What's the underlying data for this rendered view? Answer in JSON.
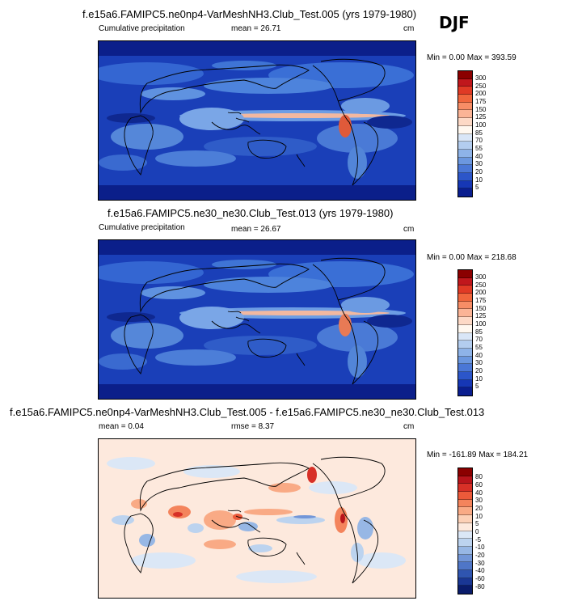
{
  "season": "DJF",
  "panels": [
    {
      "title": "f.e15a6.FAMIPC5.ne0np4-VarMeshNH3.Club_Test.005 (yrs 1979-1980)",
      "left_label": "Cumulative precipitation",
      "center_label": "mean =  26.71",
      "units": "cm",
      "minmax": "Min =   0.00 Max = 393.59"
    },
    {
      "title": "f.e15a6.FAMIPC5.ne30_ne30.Club_Test.013 (yrs 1979-1980)",
      "left_label": "Cumulative precipitation",
      "center_label": "mean =  26.67",
      "units": "cm",
      "minmax": "Min =   0.00 Max = 218.68"
    },
    {
      "title": "f.e15a6.FAMIPC5.ne0np4-VarMeshNH3.Club_Test.005 - f.e15a6.FAMIPC5.ne30_ne30.Club_Test.013",
      "left_label": "mean =   0.04",
      "center_label": "rmse =   8.37",
      "units": "cm",
      "minmax": "Min = -161.89 Max = 184.21"
    }
  ],
  "chart_data": [
    {
      "type": "heatmap",
      "title": "f.e15a6.FAMIPC5.ne0np4-VarMeshNH3.Club_Test.005 (yrs 1979-1980)",
      "variable": "Cumulative precipitation",
      "units": "cm",
      "mean": 26.71,
      "min": 0.0,
      "max": 393.59,
      "contour_levels": [
        5,
        10,
        20,
        30,
        40,
        55,
        70,
        85,
        100,
        125,
        150,
        175,
        200,
        250,
        300
      ],
      "level_labels": [
        "300",
        "250",
        "200",
        "175",
        "150",
        "125",
        "100",
        "85",
        "70",
        "55",
        "40",
        "30",
        "20",
        "10",
        "5"
      ],
      "colors": [
        "#8b0000",
        "#c0171c",
        "#e03a25",
        "#f0663d",
        "#f78d66",
        "#fbb496",
        "#fdd9c6",
        "#fff8f0",
        "#d9e6f7",
        "#b3cdef",
        "#8eb3e8",
        "#6b97df",
        "#4a77d6",
        "#2c56c9",
        "#1637b5",
        "#0a1e8f"
      ]
    },
    {
      "type": "heatmap",
      "title": "f.e15a6.FAMIPC5.ne30_ne30.Club_Test.013 (yrs 1979-1980)",
      "variable": "Cumulative precipitation",
      "units": "cm",
      "mean": 26.67,
      "min": 0.0,
      "max": 218.68,
      "contour_levels": [
        5,
        10,
        20,
        30,
        40,
        55,
        70,
        85,
        100,
        125,
        150,
        175,
        200,
        250,
        300
      ],
      "level_labels": [
        "300",
        "250",
        "200",
        "175",
        "150",
        "125",
        "100",
        "85",
        "70",
        "55",
        "40",
        "30",
        "20",
        "10",
        "5"
      ],
      "colors": [
        "#8b0000",
        "#c0171c",
        "#e03a25",
        "#f0663d",
        "#f78d66",
        "#fbb496",
        "#fdd9c6",
        "#fff8f0",
        "#d9e6f7",
        "#b3cdef",
        "#8eb3e8",
        "#6b97df",
        "#4a77d6",
        "#2c56c9",
        "#1637b5",
        "#0a1e8f"
      ]
    },
    {
      "type": "heatmap",
      "title": "f.e15a6.FAMIPC5.ne0np4-VarMeshNH3.Club_Test.005 - f.e15a6.FAMIPC5.ne30_ne30.Club_Test.013",
      "variable": "difference",
      "units": "cm",
      "mean": 0.04,
      "rmse": 8.37,
      "min": -161.89,
      "max": 184.21,
      "contour_levels": [
        -80,
        -60,
        -40,
        -30,
        -20,
        -10,
        -5,
        0,
        5,
        10,
        20,
        30,
        40,
        60,
        80
      ],
      "level_labels": [
        "80",
        "60",
        "40",
        "30",
        "20",
        "10",
        "5",
        "0",
        "-5",
        "-10",
        "-20",
        "-30",
        "-40",
        "-60",
        "-80"
      ],
      "colors": [
        "#8b0000",
        "#b8141b",
        "#d73027",
        "#ec5a3a",
        "#f4845c",
        "#f9aa85",
        "#fcd0b6",
        "#fde9dd",
        "#dbe7f6",
        "#bcd3ef",
        "#97b7e5",
        "#7296d8",
        "#4f76c7",
        "#2f55b0",
        "#1a3794",
        "#0a1c6b"
      ]
    }
  ]
}
